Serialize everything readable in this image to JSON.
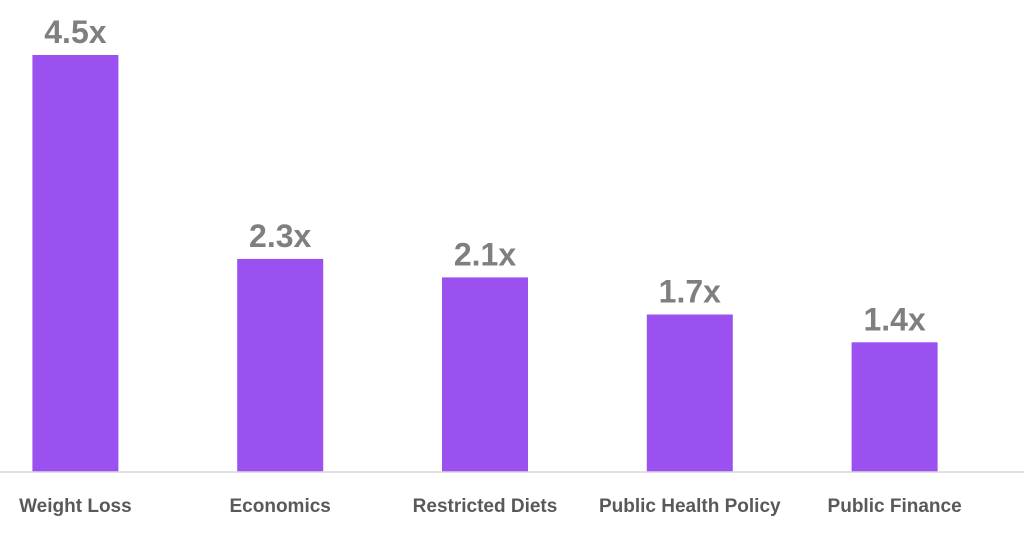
{
  "chart_data": {
    "type": "bar",
    "categories": [
      "Weight Loss",
      "Economics",
      "Restricted Diets",
      "Public Health Policy",
      "Public Finance"
    ],
    "values": [
      4.5,
      2.3,
      2.1,
      1.7,
      1.4
    ],
    "value_labels": [
      "4.5x",
      "2.3x",
      "2.1x",
      "1.7x",
      "1.4x"
    ],
    "title": "",
    "xlabel": "",
    "ylabel": "",
    "ylim": [
      0,
      4.5
    ],
    "grid": false,
    "legend": "none",
    "colors": {
      "bar": "#9b51f0",
      "value_label": "#7f7f7f",
      "category_label": "#595959",
      "axis": "#d9d9d9"
    }
  }
}
